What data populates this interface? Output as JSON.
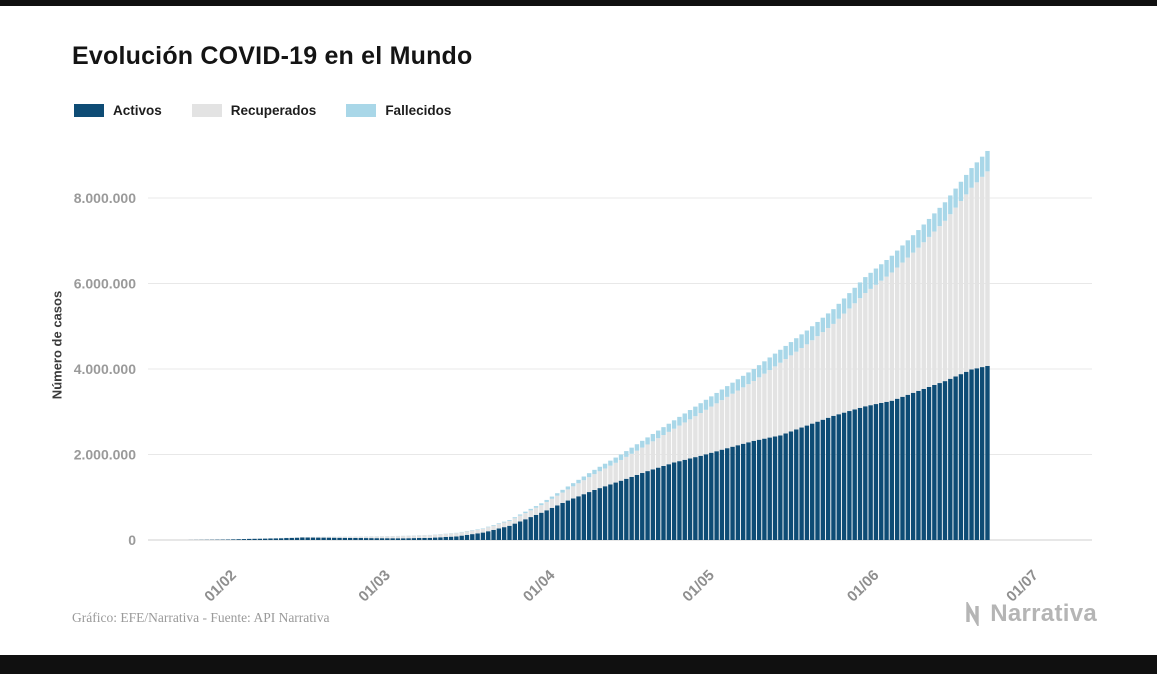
{
  "page": {
    "title": "Evolución COVID-19 en el Mundo"
  },
  "legend": {
    "items": [
      {
        "label": "Activos",
        "color": "#0e4c75"
      },
      {
        "label": "Recuperados",
        "color": "#e3e3e3"
      },
      {
        "label": "Fallecidos",
        "color": "#a9d7e8"
      }
    ]
  },
  "chart_data": {
    "type": "bar",
    "stacked": true,
    "title": "Evolución COVID-19 en el Mundo",
    "xlabel": "",
    "ylabel": "Número de casos",
    "ylim": [
      0,
      9100000
    ],
    "grid": true,
    "legend_position": "top-left",
    "yticks": [
      {
        "value": 0,
        "label": "0"
      },
      {
        "value": 2000000,
        "label": "2.000.000"
      },
      {
        "value": 4000000,
        "label": "4.000.000"
      },
      {
        "value": 6000000,
        "label": "6.000.000"
      },
      {
        "value": 8000000,
        "label": "8.000.000"
      }
    ],
    "xticks": [
      {
        "day": 8,
        "label": "01/02"
      },
      {
        "day": 37,
        "label": "01/03"
      },
      {
        "day": 68,
        "label": "01/04"
      },
      {
        "day": 98,
        "label": "01/05"
      },
      {
        "day": 129,
        "label": "01/06"
      },
      {
        "day": 159,
        "label": "01/07"
      }
    ],
    "series_order": [
      "activos",
      "recuperados",
      "fallecidos"
    ],
    "series_colors": {
      "activos": "#0e4c75",
      "recuperados": "#e3e3e3",
      "fallecidos": "#a9d7e8"
    },
    "points": [
      {
        "day": 0,
        "date": "24/01",
        "activos": 830,
        "recuperados": 40,
        "fallecidos": 30
      },
      {
        "day": 4,
        "date": "28/01",
        "activos": 5360,
        "recuperados": 110,
        "fallecidos": 130
      },
      {
        "day": 8,
        "date": "01/02",
        "activos": 11440,
        "recuperados": 300,
        "fallecidos": 260
      },
      {
        "day": 12,
        "date": "05/02",
        "activos": 26140,
        "recuperados": 1200,
        "fallecidos": 560
      },
      {
        "day": 17,
        "date": "10/02",
        "activos": 37800,
        "recuperados": 4000,
        "fallecidos": 1000
      },
      {
        "day": 22,
        "date": "15/02",
        "activos": 58100,
        "recuperados": 9400,
        "fallecidos": 1700
      },
      {
        "day": 27,
        "date": "20/02",
        "activos": 55100,
        "recuperados": 18900,
        "fallecidos": 2200
      },
      {
        "day": 32,
        "date": "25/02",
        "activos": 47400,
        "recuperados": 30300,
        "fallecidos": 2700
      },
      {
        "day": 36,
        "date": "29/02",
        "activos": 43200,
        "recuperados": 39800,
        "fallecidos": 3000
      },
      {
        "day": 41,
        "date": "05/03",
        "activos": 40800,
        "recuperados": 53700,
        "fallecidos": 3400
      },
      {
        "day": 46,
        "date": "10/03",
        "activos": 49900,
        "recuperados": 64400,
        "fallecidos": 4300
      },
      {
        "day": 51,
        "date": "15/03",
        "activos": 84400,
        "recuperados": 76600,
        "fallecidos": 6400
      },
      {
        "day": 56,
        "date": "20/03",
        "activos": 173500,
        "recuperados": 87400,
        "fallecidos": 11300
      },
      {
        "day": 61,
        "date": "25/03",
        "activos": 332600,
        "recuperados": 113800,
        "fallecidos": 21200
      },
      {
        "day": 67,
        "date": "31/03",
        "activos": 638200,
        "recuperados": 178100,
        "fallecidos": 42100
      },
      {
        "day": 72,
        "date": "05/04",
        "activos": 923000,
        "recuperados": 261000,
        "fallecidos": 68000
      },
      {
        "day": 77,
        "date": "10/04",
        "activos": 1171000,
        "recuperados": 370000,
        "fallecidos": 100000
      },
      {
        "day": 82,
        "date": "15/04",
        "activos": 1387000,
        "recuperados": 485000,
        "fallecidos": 128000
      },
      {
        "day": 87,
        "date": "20/04",
        "activos": 1612000,
        "recuperados": 623000,
        "fallecidos": 165000
      },
      {
        "day": 92,
        "date": "25/04",
        "activos": 1813000,
        "recuperados": 790000,
        "fallecidos": 197000
      },
      {
        "day": 97,
        "date": "30/04",
        "activos": 1970000,
        "recuperados": 1000000,
        "fallecidos": 230000
      },
      {
        "day": 102,
        "date": "05/05",
        "activos": 2148000,
        "recuperados": 1200000,
        "fallecidos": 252000
      },
      {
        "day": 107,
        "date": "10/05",
        "activos": 2320000,
        "recuperados": 1400000,
        "fallecidos": 280000
      },
      {
        "day": 112,
        "date": "15/05",
        "activos": 2447000,
        "recuperados": 1700000,
        "fallecidos": 303000
      },
      {
        "day": 117,
        "date": "20/05",
        "activos": 2677000,
        "recuperados": 1900000,
        "fallecidos": 323000
      },
      {
        "day": 122,
        "date": "25/05",
        "activos": 2905000,
        "recuperados": 2150000,
        "fallecidos": 345000
      },
      {
        "day": 128,
        "date": "31/05",
        "activos": 3128000,
        "recuperados": 2650000,
        "fallecidos": 372000
      },
      {
        "day": 133,
        "date": "05/06",
        "activos": 3258000,
        "recuperados": 3000000,
        "fallecidos": 392000
      },
      {
        "day": 138,
        "date": "10/06",
        "activos": 3489000,
        "recuperados": 3350000,
        "fallecidos": 411000
      },
      {
        "day": 143,
        "date": "15/06",
        "activos": 3717000,
        "recuperados": 3750000,
        "fallecidos": 433000
      },
      {
        "day": 148,
        "date": "20/06",
        "activos": 3989000,
        "recuperados": 4250000,
        "fallecidos": 461000
      },
      {
        "day": 151,
        "date": "23/06",
        "activos": 4073000,
        "recuperados": 4550000,
        "fallecidos": 477000
      }
    ]
  },
  "footer": {
    "credit": "Gráfico: EFE/Narrativa - Fuente: API Narrativa",
    "brand": "Narrativa"
  }
}
